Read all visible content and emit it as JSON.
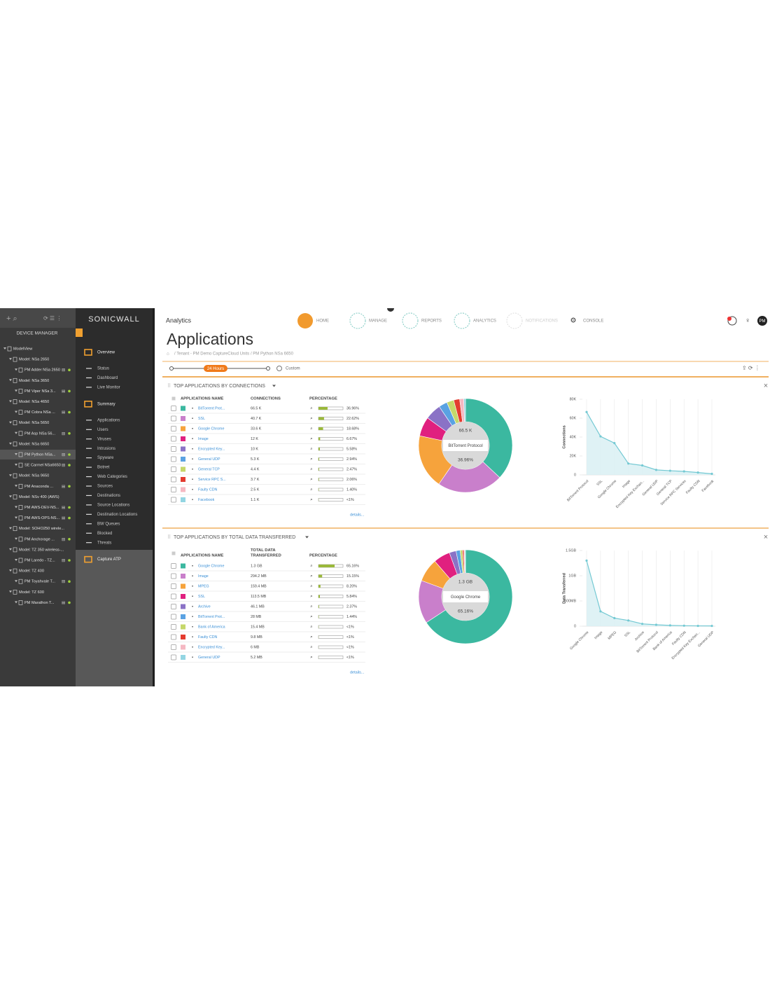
{
  "sidebar": {
    "title": "DEVICE MANAGER",
    "tree": {
      "label": "ModelView",
      "children": [
        {
          "label": "Model: NSa 2650",
          "children": [
            "PM Adder NSa 2650"
          ]
        },
        {
          "label": "Model: NSa 3650",
          "children": [
            "PM Viper NSa 3..."
          ]
        },
        {
          "label": "Model: NSa 4650",
          "children": [
            "PM Cobra NSa ..."
          ]
        },
        {
          "label": "Model: NSa 5650",
          "children": [
            "PM Asp NSa 56..."
          ]
        },
        {
          "label": "Model: NSa 6650",
          "children": [
            "PM Python NSa...",
            "SE Carmel NSa6650"
          ]
        },
        {
          "label": "Model: NSa 9650",
          "children": [
            "PM Anaconda ..."
          ]
        },
        {
          "label": "Model: NSv 400 (AWS)",
          "children": [
            "PM AWS-DEV-NS...",
            "PM AWS-OPS-NS..."
          ]
        },
        {
          "label": "Model: SOHO250 wirele...",
          "children": [
            "PM Anchorage ..."
          ]
        },
        {
          "label": "Model: TZ 350 wireless-...",
          "children": [
            "PM Laredo - TZ..."
          ]
        },
        {
          "label": "Model: TZ 400",
          "children": [
            "PM Toyahvale T..."
          ]
        },
        {
          "label": "Model: TZ 600",
          "children": [
            "PM Marathon T..."
          ]
        }
      ]
    }
  },
  "menu": {
    "brand": "SONICWALL",
    "groups": [
      {
        "label": "Overview",
        "items": [
          "Status",
          "Dashboard",
          "Live Monitor"
        ]
      },
      {
        "label": "Summary",
        "items": [
          "Applications",
          "Users",
          "Viruses",
          "Intrusions",
          "Spyware",
          "Botnet",
          "Web Categories",
          "Sources",
          "Destinations",
          "Source Locations",
          "Destination Locations",
          "BW Queues",
          "Blocked",
          "Threats"
        ]
      },
      {
        "label": "Capture ATP",
        "items": []
      }
    ]
  },
  "header": {
    "section": "Analytics",
    "nav": [
      "HOME",
      "MANAGE",
      "REPORTS",
      "ANALYTICS",
      "NOTIFICATIONS",
      "CONSOLE"
    ],
    "title": "Applications",
    "breadcrumb": "/ Tenant - PM Demo CaptureCloud Units / PM Python NSa 6650",
    "time_range": "24 Hours",
    "custom": "Custom",
    "user": "PM"
  },
  "panels": [
    {
      "title": "TOP APPLICATIONS BY CONNECTIONS",
      "columns": [
        "APPLICATIONS NAME",
        "CONNECTIONS",
        "PERCENTAGE"
      ],
      "rows": [
        {
          "name": "BitTorrent Prot...",
          "value": "66.5 K",
          "percentage": "36.96%"
        },
        {
          "name": "SSL",
          "value": "40.7 K",
          "percentage": "22.62%"
        },
        {
          "name": "Google Chrome",
          "value": "33.6 K",
          "percentage": "18.68%"
        },
        {
          "name": "Image",
          "value": "12 K",
          "percentage": "6.67%"
        },
        {
          "name": "Encrypted Key...",
          "value": "10 K",
          "percentage": "5.58%"
        },
        {
          "name": "General UDP",
          "value": "5.3 K",
          "percentage": "2.94%"
        },
        {
          "name": "General TCP",
          "value": "4.4 K",
          "percentage": "2.47%"
        },
        {
          "name": "Service RPC S...",
          "value": "3.7 K",
          "percentage": "2.06%"
        },
        {
          "name": "Faulty CDN",
          "value": "2.5 K",
          "percentage": "1.40%"
        },
        {
          "name": "Facebook",
          "value": "1.1 K",
          "percentage": "<1%"
        }
      ],
      "details": "details...",
      "center": {
        "value": "66.5 K",
        "name": "BitTorrent Protocol",
        "percentage": "36.96%"
      },
      "chart": {
        "type": "line",
        "y_label": "Connections",
        "x": [
          "BitTorrent Protocol",
          "SSL",
          "Google Chrome",
          "Image",
          "Encrypted Key Exchan...",
          "General UDP",
          "General TCP",
          "Service RPC Services",
          "Faulty CDN",
          "Facebook"
        ],
        "values": [
          66500,
          40700,
          33600,
          12000,
          10000,
          5300,
          4400,
          3700,
          2500,
          1100
        ],
        "ylim": [
          0,
          80000
        ],
        "yticks": [
          0,
          {
            "value": 20000,
            "label": "20K"
          },
          {
            "value": 40000,
            "label": "40K"
          },
          {
            "value": 60000,
            "label": "60K"
          },
          {
            "value": 80000,
            "label": "80K"
          }
        ],
        "colors": [
          "#3bb8a0",
          "#c97fcb",
          "#f6a33c",
          "#e0207f",
          "#8a72c6",
          "#5aa2e2",
          "#c5d76a",
          "#e33b2f",
          "#f5b8c2",
          "#93d5e2"
        ]
      }
    },
    {
      "title": "TOP APPLICATIONS BY TOTAL DATA TRANSFERRED",
      "columns": [
        "APPLICATIONS NAME",
        "TOTAL DATA TRANSFERRED",
        "PERCENTAGE"
      ],
      "rows": [
        {
          "name": "Google Chrome",
          "value": "1.3 GB",
          "percentage": "65.16%"
        },
        {
          "name": "Image",
          "value": "294.2 MB",
          "percentage": "15.15%"
        },
        {
          "name": "MPEG",
          "value": "159.4 MB",
          "percentage": "8.20%"
        },
        {
          "name": "SSL",
          "value": "113.5 MB",
          "percentage": "5.84%"
        },
        {
          "name": "Archive",
          "value": "46.1 MB",
          "percentage": "2.37%"
        },
        {
          "name": "BitTorrent Prot...",
          "value": "28 MB",
          "percentage": "1.44%"
        },
        {
          "name": "Bank of America",
          "value": "15.4 MB",
          "percentage": "<1%"
        },
        {
          "name": "Faulty CDN",
          "value": "9.8 MB",
          "percentage": "<1%"
        },
        {
          "name": "Encrypted Key...",
          "value": "6 MB",
          "percentage": "<1%"
        },
        {
          "name": "General UDP",
          "value": "5.2 MB",
          "percentage": "<1%"
        }
      ],
      "details": "details...",
      "center": {
        "value": "1.3 GB",
        "name": "Google Chrome",
        "percentage": "65.16%"
      },
      "chart": {
        "type": "line",
        "y_label": "Data Transferred",
        "x": [
          "Google Chrome",
          "Image",
          "MPEG",
          "SSL",
          "Archive",
          "BitTorrent Protocol",
          "Bank of America",
          "Faulty CDN",
          "Encrypted Key Exchan...",
          "General UDP"
        ],
        "values": [
          1300,
          294.2,
          159.4,
          113.5,
          46.1,
          28,
          15.4,
          9.8,
          6,
          5.2
        ],
        "ylim": [
          0,
          1500
        ],
        "yticks": [
          0,
          {
            "value": 500,
            "label": "500MB"
          },
          {
            "value": 1000,
            "label": "1GB"
          },
          {
            "value": 1500,
            "label": "1.5GB"
          }
        ],
        "colors": [
          "#3bb8a0",
          "#c97fcb",
          "#f6a33c",
          "#e0207f",
          "#8a72c6",
          "#5aa2e2",
          "#c5d76a",
          "#e33b2f",
          "#f5b8c2",
          "#93d5e2"
        ]
      }
    }
  ]
}
